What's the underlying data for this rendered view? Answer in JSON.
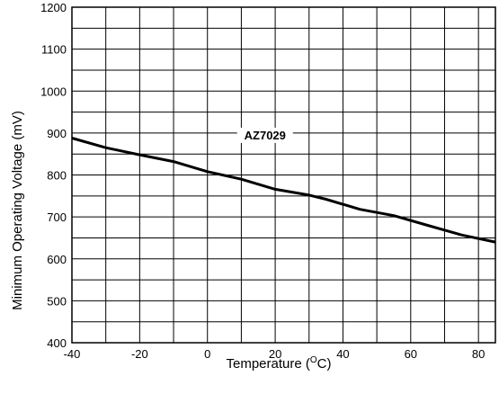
{
  "chart_data": {
    "type": "line",
    "title": "",
    "xlabel": "Temperature (",
    "xlabel_sup": "O",
    "xlabel_suffix": "C)",
    "ylabel": "Minimum Operating Voltage (mV)",
    "xlim": [
      -40,
      85
    ],
    "ylim": [
      400,
      1200
    ],
    "x_ticks": [
      -40,
      -20,
      0,
      20,
      40,
      60,
      80
    ],
    "x_minor_ticks": [
      -30,
      -10,
      10,
      30,
      50,
      70
    ],
    "y_ticks": [
      400,
      500,
      600,
      700,
      800,
      900,
      1000,
      1100,
      1200
    ],
    "y_minor_ticks": [
      450,
      550,
      650,
      750,
      850,
      950,
      1050,
      1150
    ],
    "grid": true,
    "series": [
      {
        "name": "AZ7029",
        "x": [
          -40,
          -30,
          -20,
          -10,
          0,
          10,
          20,
          30,
          35,
          45,
          55,
          65,
          75,
          85
        ],
        "y": [
          888,
          865,
          848,
          832,
          808,
          790,
          766,
          752,
          742,
          718,
          703,
          680,
          657,
          640
        ]
      }
    ],
    "annotations": [
      {
        "text": "AZ7029",
        "x": 17,
        "y": 887
      }
    ]
  }
}
